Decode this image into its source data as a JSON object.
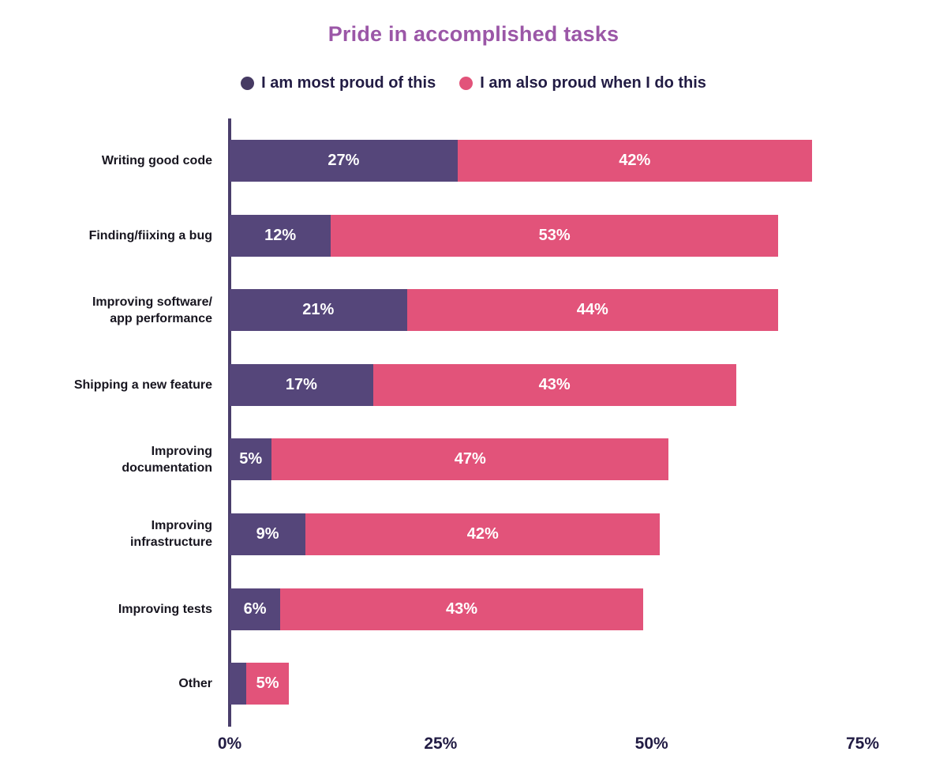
{
  "chart_data": {
    "type": "bar",
    "orientation": "horizontal",
    "stacked": true,
    "title": "Pride in accomplished tasks",
    "legend_position": "top",
    "grid": false,
    "xlim": [
      0,
      75
    ],
    "x_ticks": [
      {
        "label": "0%",
        "value": 0
      },
      {
        "label": "25%",
        "value": 25
      },
      {
        "label": "50%",
        "value": 50
      },
      {
        "label": "75%",
        "value": 75
      }
    ],
    "series": [
      {
        "name": "I am most proud of this",
        "key": "most",
        "color": "#55467a"
      },
      {
        "name": "I am also proud when I do this",
        "key": "also",
        "color": "#e2537a"
      }
    ],
    "rows": [
      {
        "label_lines": [
          "Writing good code"
        ],
        "values": [
          27,
          42
        ],
        "value_labels": [
          "27%",
          "42%"
        ]
      },
      {
        "label_lines": [
          "Finding/fiixing a bug"
        ],
        "values": [
          12,
          53
        ],
        "value_labels": [
          "12%",
          "53%"
        ]
      },
      {
        "label_lines": [
          "Improving software/",
          "app performance"
        ],
        "values": [
          21,
          44
        ],
        "value_labels": [
          "21%",
          "44%"
        ]
      },
      {
        "label_lines": [
          "Shipping a new feature"
        ],
        "values": [
          17,
          43
        ],
        "value_labels": [
          "17%",
          "43%"
        ]
      },
      {
        "label_lines": [
          "Improving",
          "documentation"
        ],
        "values": [
          5,
          47
        ],
        "value_labels": [
          "5%",
          "47%"
        ]
      },
      {
        "label_lines": [
          "Improving",
          "infrastructure"
        ],
        "values": [
          9,
          42
        ],
        "value_labels": [
          "9%",
          "42%"
        ]
      },
      {
        "label_lines": [
          "Improving tests"
        ],
        "values": [
          6,
          43
        ],
        "value_labels": [
          "6%",
          "43%"
        ]
      },
      {
        "label_lines": [
          "Other"
        ],
        "values": [
          2,
          5
        ],
        "value_labels": [
          "",
          "5%"
        ]
      }
    ],
    "colors": {
      "title": "#9b57a7",
      "most_bar": "#55467a",
      "also_bar": "#e2537a",
      "legend_dot_most": "#463a63",
      "legend_dot_also": "#e2537a",
      "axis_line": "#4a3e6b",
      "text_dark": "#221c44",
      "category_label": "#17151f",
      "value_label": "#ffffff"
    }
  }
}
